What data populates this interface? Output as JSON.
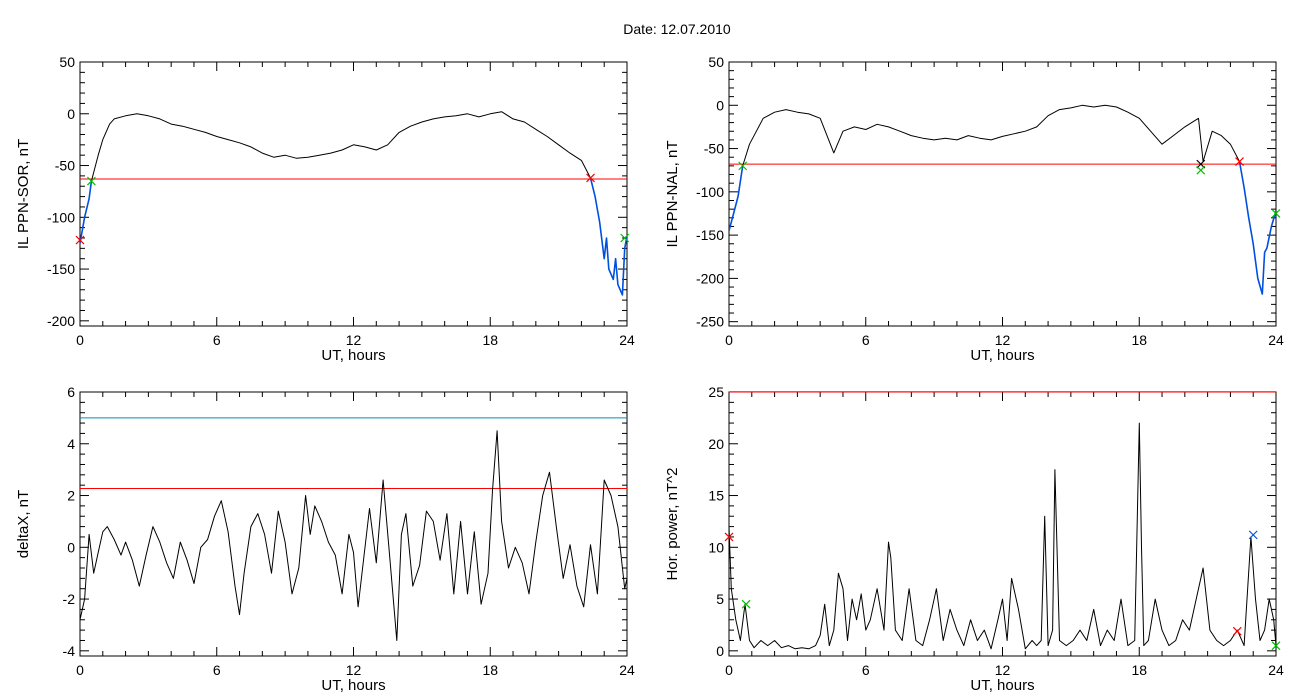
{
  "figure": {
    "date_label": "Date:  12.07.2010"
  },
  "colors": {
    "black": "#000000",
    "red": "#ff0000",
    "blue": "#0050e0",
    "green": "#00c000",
    "teal": "#0090b0"
  },
  "chart_data": [
    {
      "type": "line",
      "xlabel": "UT, hours",
      "ylabel": "IL PPN-SOR, nT",
      "xlim": [
        0,
        24
      ],
      "ylim": [
        -205,
        50
      ],
      "xticks": [
        0,
        6,
        12,
        18,
        24
      ],
      "yticks": [
        -200,
        -150,
        -100,
        -50,
        0,
        50
      ],
      "hlines": [
        {
          "y": -63,
          "color": "red"
        }
      ],
      "series": [
        {
          "color": "black",
          "x": [
            0.5,
            0.8,
            1.0,
            1.3,
            1.5,
            2.0,
            2.5,
            3.0,
            3.5,
            4.0,
            4.5,
            5.0,
            5.5,
            6.0,
            6.5,
            7.0,
            7.5,
            8.0,
            8.5,
            9.0,
            9.5,
            10.0,
            10.5,
            11.0,
            11.5,
            12.0,
            12.5,
            13.0,
            13.5,
            14.0,
            14.5,
            15.0,
            15.5,
            16.0,
            16.5,
            17.0,
            17.5,
            18.0,
            18.5,
            19.0,
            19.5,
            20.0,
            20.5,
            21.0,
            21.5,
            22.0,
            22.4
          ],
          "y": [
            -65,
            -40,
            -25,
            -10,
            -5,
            -2,
            0,
            -2,
            -5,
            -10,
            -12,
            -15,
            -18,
            -22,
            -25,
            -28,
            -32,
            -38,
            -42,
            -40,
            -43,
            -42,
            -40,
            -38,
            -35,
            -30,
            -32,
            -35,
            -30,
            -18,
            -12,
            -8,
            -5,
            -3,
            -2,
            0,
            -3,
            0,
            2,
            -5,
            -8,
            -15,
            -22,
            -30,
            -38,
            -45,
            -62
          ]
        },
        {
          "color": "blue",
          "x": [
            0.0,
            0.2,
            0.4,
            0.5
          ],
          "y": [
            -125,
            -100,
            -82,
            -65
          ]
        },
        {
          "color": "blue",
          "x": [
            22.4,
            22.6,
            22.8,
            23.0,
            23.1,
            23.2,
            23.4,
            23.5,
            23.6,
            23.8,
            23.9,
            24.0
          ],
          "y": [
            -62,
            -80,
            -105,
            -140,
            -120,
            -150,
            -160,
            -140,
            -165,
            -175,
            -130,
            -118
          ]
        }
      ],
      "markers": [
        {
          "x": 0.5,
          "y": -65,
          "color": "green"
        },
        {
          "x": 22.4,
          "y": -62,
          "color": "red"
        },
        {
          "x": 23.9,
          "y": -120,
          "color": "green"
        },
        {
          "x": 0.0,
          "y": -122,
          "color": "red"
        }
      ]
    },
    {
      "type": "line",
      "xlabel": "UT, hours",
      "ylabel": "IL PPN-NAL, nT",
      "xlim": [
        0,
        24
      ],
      "ylim": [
        -255,
        50
      ],
      "xticks": [
        0,
        6,
        12,
        18,
        24
      ],
      "yticks": [
        -250,
        -200,
        -150,
        -100,
        -50,
        0,
        50
      ],
      "hlines": [
        {
          "y": -68,
          "color": "red"
        }
      ],
      "series": [
        {
          "color": "black",
          "x": [
            0.6,
            0.9,
            1.2,
            1.5,
            2.0,
            2.5,
            3.0,
            3.5,
            4.0,
            4.3,
            4.6,
            5.0,
            5.5,
            6.0,
            6.5,
            7.0,
            7.5,
            8.0,
            8.5,
            9.0,
            9.5,
            10.0,
            10.5,
            11.0,
            11.5,
            12.0,
            12.5,
            13.0,
            13.5,
            14.0,
            14.5,
            15.0,
            15.5,
            16.0,
            16.5,
            17.0,
            17.5,
            18.0,
            18.5,
            19.0,
            19.5,
            20.0,
            20.3,
            20.6,
            20.8,
            21.2,
            21.6,
            22.0,
            22.4
          ],
          "y": [
            -70,
            -45,
            -30,
            -15,
            -8,
            -5,
            -8,
            -10,
            -15,
            -35,
            -55,
            -30,
            -25,
            -28,
            -22,
            -25,
            -30,
            -35,
            -38,
            -40,
            -38,
            -40,
            -35,
            -38,
            -40,
            -36,
            -33,
            -30,
            -25,
            -12,
            -5,
            -3,
            0,
            -2,
            0,
            -2,
            -8,
            -15,
            -30,
            -45,
            -35,
            -25,
            -20,
            -15,
            -65,
            -30,
            -35,
            -45,
            -65
          ]
        },
        {
          "color": "blue",
          "x": [
            0.0,
            0.2,
            0.4,
            0.6
          ],
          "y": [
            -145,
            -125,
            -105,
            -70
          ]
        },
        {
          "color": "blue",
          "x": [
            22.4,
            22.6,
            22.8,
            23.0,
            23.2,
            23.4,
            23.5,
            23.6,
            23.8,
            24.0
          ],
          "y": [
            -65,
            -95,
            -130,
            -160,
            -200,
            -218,
            -170,
            -165,
            -140,
            -122
          ]
        }
      ],
      "markers": [
        {
          "x": 0.6,
          "y": -70,
          "color": "green"
        },
        {
          "x": 20.7,
          "y": -68,
          "color": "black"
        },
        {
          "x": 20.7,
          "y": -75,
          "color": "green"
        },
        {
          "x": 22.4,
          "y": -65,
          "color": "red"
        },
        {
          "x": 24.0,
          "y": -125,
          "color": "green"
        }
      ]
    },
    {
      "type": "line",
      "xlabel": "UT, hours",
      "ylabel": "deltaX, nT",
      "xlim": [
        0,
        24
      ],
      "ylim": [
        -4.2,
        6
      ],
      "xticks": [
        0,
        6,
        12,
        18,
        24
      ],
      "yticks": [
        -4,
        -2,
        0,
        2,
        4,
        6
      ],
      "hlines": [
        {
          "y": 5.0,
          "color": "teal"
        },
        {
          "y": 2.27,
          "color": "red"
        }
      ],
      "series": [
        {
          "color": "black",
          "x": [
            0.0,
            0.2,
            0.4,
            0.6,
            0.8,
            1.0,
            1.2,
            1.5,
            1.8,
            2.0,
            2.3,
            2.6,
            2.9,
            3.2,
            3.5,
            3.8,
            4.1,
            4.4,
            4.7,
            5.0,
            5.3,
            5.6,
            5.9,
            6.2,
            6.5,
            6.8,
            7.0,
            7.2,
            7.5,
            7.8,
            8.1,
            8.4,
            8.7,
            9.0,
            9.3,
            9.6,
            9.9,
            10.1,
            10.3,
            10.6,
            10.9,
            11.2,
            11.5,
            11.8,
            12.0,
            12.2,
            12.4,
            12.7,
            13.0,
            13.3,
            13.6,
            13.9,
            14.1,
            14.3,
            14.6,
            14.9,
            15.2,
            15.5,
            15.8,
            16.1,
            16.4,
            16.7,
            17.0,
            17.3,
            17.6,
            17.9,
            18.1,
            18.3,
            18.5,
            18.8,
            19.1,
            19.4,
            19.7,
            20.0,
            20.3,
            20.6,
            20.9,
            21.2,
            21.5,
            21.8,
            22.1,
            22.4,
            22.7,
            23.0,
            23.3,
            23.6,
            23.9,
            24.0
          ],
          "y": [
            -2.8,
            -2.0,
            0.5,
            -1.0,
            -0.2,
            0.6,
            0.8,
            0.3,
            -0.3,
            0.2,
            -0.5,
            -1.5,
            -0.3,
            0.8,
            0.2,
            -0.6,
            -1.2,
            0.2,
            -0.5,
            -1.4,
            0.0,
            0.3,
            1.2,
            1.8,
            0.6,
            -1.5,
            -2.6,
            -1.0,
            0.8,
            1.3,
            0.5,
            -1.0,
            1.4,
            0.2,
            -1.8,
            -0.8,
            2.0,
            0.5,
            1.6,
            1.0,
            0.2,
            -0.3,
            -1.8,
            0.5,
            -0.2,
            -2.3,
            -0.8,
            1.5,
            -0.6,
            2.6,
            -0.5,
            -3.6,
            0.5,
            1.3,
            -1.5,
            -0.7,
            1.4,
            1.0,
            -0.5,
            1.3,
            -1.8,
            1.0,
            -1.8,
            0.6,
            -2.2,
            -1.0,
            2.2,
            4.5,
            1.0,
            -0.8,
            0.0,
            -0.6,
            -1.8,
            0.2,
            2.0,
            2.9,
            0.8,
            -1.2,
            0.1,
            -1.5,
            -2.3,
            0.1,
            -1.8,
            2.6,
            2.0,
            0.8,
            -1.6,
            -1.2
          ]
        }
      ],
      "markers": []
    },
    {
      "type": "line",
      "xlabel": "UT, hours",
      "ylabel": "Hor. power, nT^2",
      "xlim": [
        0,
        24
      ],
      "ylim": [
        -0.5,
        25
      ],
      "xticks": [
        0,
        6,
        12,
        18,
        24
      ],
      "yticks": [
        0,
        5,
        10,
        15,
        20,
        25
      ],
      "hlines": [
        {
          "y": 25,
          "color": "red"
        }
      ],
      "series": [
        {
          "color": "black",
          "x": [
            0.0,
            0.1,
            0.3,
            0.5,
            0.7,
            0.9,
            1.1,
            1.4,
            1.7,
            2.0,
            2.3,
            2.6,
            2.9,
            3.2,
            3.5,
            3.8,
            4.0,
            4.2,
            4.4,
            4.6,
            4.8,
            5.0,
            5.2,
            5.4,
            5.6,
            5.8,
            6.0,
            6.2,
            6.5,
            6.8,
            7.0,
            7.1,
            7.3,
            7.6,
            7.9,
            8.2,
            8.5,
            8.8,
            9.1,
            9.4,
            9.7,
            10.0,
            10.3,
            10.6,
            10.9,
            11.2,
            11.5,
            11.8,
            12.0,
            12.2,
            12.4,
            12.7,
            13.0,
            13.3,
            13.5,
            13.7,
            13.85,
            14.0,
            14.2,
            14.3,
            14.5,
            14.8,
            15.1,
            15.4,
            15.7,
            16.0,
            16.3,
            16.6,
            16.9,
            17.2,
            17.5,
            17.8,
            18.0,
            18.1,
            18.2,
            18.4,
            18.7,
            19.0,
            19.3,
            19.6,
            19.9,
            20.2,
            20.5,
            20.8,
            21.1,
            21.4,
            21.7,
            22.0,
            22.3,
            22.6,
            22.9,
            23.1,
            23.3,
            23.5,
            23.7,
            23.9,
            24.0
          ],
          "y": [
            12,
            6,
            3,
            1,
            4.5,
            1,
            0.3,
            1,
            0.5,
            1,
            0.3,
            0.5,
            0.2,
            0.3,
            0.2,
            0.5,
            1.5,
            4.5,
            0.5,
            2,
            7.5,
            6,
            1,
            5,
            3,
            5.5,
            2,
            3,
            6,
            2,
            10.5,
            9,
            2,
            1,
            6,
            1,
            0.5,
            3,
            6,
            1,
            4,
            2,
            0.5,
            3,
            1,
            2,
            0.2,
            3,
            5,
            1,
            7,
            4,
            0.2,
            1,
            0.5,
            1,
            13,
            0.5,
            2,
            17.5,
            1,
            0.5,
            1,
            2,
            1,
            4,
            0.5,
            2,
            1,
            5,
            0.5,
            1,
            22,
            10,
            0.5,
            1,
            5,
            2,
            0.5,
            1,
            3,
            2,
            5,
            8,
            2,
            1,
            0.5,
            1,
            2,
            0.5,
            11,
            5,
            1,
            2,
            5,
            3,
            0.5
          ]
        }
      ],
      "markers": [
        {
          "x": 0.75,
          "y": 4.5,
          "color": "green"
        },
        {
          "x": 23.0,
          "y": 11.2,
          "color": "blue"
        },
        {
          "x": 22.3,
          "y": 1.9,
          "color": "red"
        },
        {
          "x": 24.0,
          "y": 0.5,
          "color": "green"
        },
        {
          "x": 0.0,
          "y": 11.0,
          "color": "red"
        }
      ]
    }
  ]
}
